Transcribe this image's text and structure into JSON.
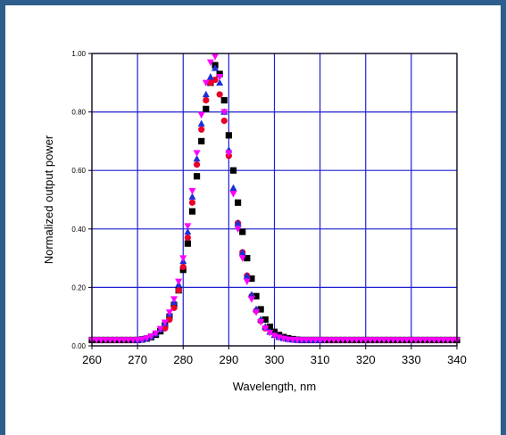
{
  "chart_data": {
    "type": "scatter",
    "title": "",
    "xlabel": "Wavelength, nm",
    "ylabel": "Normalized output power",
    "xlim": [
      260,
      340
    ],
    "ylim": [
      0,
      1
    ],
    "x_ticks": [
      260,
      270,
      280,
      290,
      300,
      310,
      320,
      330,
      340
    ],
    "y_ticks": [
      0,
      0.2,
      0.4,
      0.6,
      0.8,
      1.0
    ],
    "x_tick_labels": [
      "260",
      "270",
      "280",
      "290",
      "300",
      "310",
      "320",
      "330",
      "340"
    ],
    "y_tick_labels": [
      "0.00",
      "0.20",
      "0.40",
      "0.60",
      "0.80",
      "1.00"
    ],
    "grid": true,
    "legend": "none",
    "series": [
      {
        "marker": "square",
        "color": "#000000",
        "x": [
          260,
          261,
          262,
          263,
          264,
          265,
          266,
          267,
          268,
          269,
          270,
          271,
          272,
          273,
          274,
          275,
          276,
          277,
          278,
          279,
          280,
          281,
          282,
          283,
          284,
          285,
          286,
          287,
          288,
          289,
          290,
          291,
          292,
          293,
          294,
          295,
          296,
          297,
          298,
          299,
          300,
          301,
          302,
          303,
          304,
          305,
          306,
          307,
          308,
          309,
          310,
          311,
          312,
          313,
          314,
          315,
          316,
          317,
          318,
          319,
          320,
          321,
          322,
          323,
          324,
          325,
          326,
          327,
          328,
          329,
          330,
          331,
          332,
          333,
          334,
          335,
          336,
          337,
          338,
          339,
          340
        ],
        "y": [
          0.02,
          0.02,
          0.02,
          0.02,
          0.02,
          0.02,
          0.02,
          0.02,
          0.02,
          0.02,
          0.02,
          0.022,
          0.025,
          0.03,
          0.038,
          0.05,
          0.07,
          0.1,
          0.14,
          0.19,
          0.26,
          0.35,
          0.46,
          0.58,
          0.7,
          0.81,
          0.9,
          0.96,
          0.93,
          0.84,
          0.72,
          0.6,
          0.49,
          0.39,
          0.3,
          0.23,
          0.17,
          0.125,
          0.09,
          0.065,
          0.048,
          0.037,
          0.03,
          0.026,
          0.023,
          0.021,
          0.02,
          0.02,
          0.02,
          0.02,
          0.02,
          0.02,
          0.02,
          0.02,
          0.02,
          0.02,
          0.02,
          0.02,
          0.02,
          0.02,
          0.02,
          0.02,
          0.02,
          0.02,
          0.02,
          0.02,
          0.02,
          0.02,
          0.02,
          0.02,
          0.02,
          0.02,
          0.02,
          0.02,
          0.02,
          0.02,
          0.02,
          0.02,
          0.02,
          0.02,
          0.02
        ]
      },
      {
        "marker": "circle",
        "color": "#e8002a",
        "x": [
          276,
          277,
          278,
          279,
          280,
          281,
          282,
          283,
          284,
          285,
          286,
          287,
          288,
          289,
          290,
          291,
          292,
          293,
          294,
          295,
          296,
          297,
          298
        ],
        "y": [
          0.06,
          0.09,
          0.13,
          0.19,
          0.27,
          0.37,
          0.49,
          0.62,
          0.74,
          0.84,
          0.9,
          0.91,
          0.86,
          0.77,
          0.65,
          0.53,
          0.42,
          0.32,
          0.24,
          0.17,
          0.12,
          0.085,
          0.06
        ]
      },
      {
        "marker": "triangle",
        "color": "#1e2fd8",
        "x": [
          270,
          271,
          272,
          273,
          274,
          275,
          276,
          277,
          278,
          279,
          280,
          281,
          282,
          283,
          284,
          285,
          286,
          287,
          288,
          289,
          290,
          291,
          292,
          293,
          294,
          295,
          296,
          297,
          298,
          299,
          300,
          301,
          302,
          303,
          304,
          305,
          306,
          307,
          308,
          309,
          310
        ],
        "y": [
          0.02,
          0.022,
          0.026,
          0.032,
          0.042,
          0.056,
          0.078,
          0.11,
          0.15,
          0.21,
          0.29,
          0.39,
          0.51,
          0.64,
          0.76,
          0.86,
          0.92,
          0.95,
          0.9,
          0.8,
          0.67,
          0.54,
          0.42,
          0.32,
          0.24,
          0.175,
          0.125,
          0.09,
          0.065,
          0.048,
          0.037,
          0.03,
          0.026,
          0.023,
          0.021,
          0.02,
          0.02,
          0.02,
          0.02,
          0.02,
          0.02
        ]
      },
      {
        "marker": "triangle-down",
        "color": "#ff00ff",
        "x": [
          260,
          261,
          262,
          263,
          264,
          265,
          266,
          267,
          268,
          269,
          270,
          271,
          272,
          273,
          274,
          275,
          276,
          277,
          278,
          279,
          280,
          281,
          282,
          283,
          284,
          285,
          286,
          287,
          288,
          289,
          290,
          291,
          292,
          293,
          294,
          295,
          296,
          297,
          298,
          299,
          300,
          301,
          302,
          303,
          304,
          305,
          306,
          307,
          308,
          309,
          310,
          311,
          312,
          313,
          314,
          315,
          316,
          317,
          318,
          319,
          320,
          321,
          322,
          323,
          324,
          325,
          326,
          327,
          328,
          329,
          330,
          331,
          332,
          333,
          334,
          335,
          336,
          337,
          338,
          339,
          340
        ],
        "y": [
          0.02,
          0.02,
          0.02,
          0.02,
          0.02,
          0.02,
          0.02,
          0.02,
          0.02,
          0.02,
          0.02,
          0.022,
          0.026,
          0.033,
          0.043,
          0.058,
          0.08,
          0.115,
          0.16,
          0.22,
          0.3,
          0.41,
          0.53,
          0.66,
          0.79,
          0.9,
          0.97,
          0.99,
          0.92,
          0.8,
          0.66,
          0.52,
          0.4,
          0.3,
          0.22,
          0.16,
          0.115,
          0.082,
          0.06,
          0.045,
          0.035,
          0.029,
          0.025,
          0.022,
          0.021,
          0.02,
          0.02,
          0.02,
          0.02,
          0.02,
          0.02,
          0.02,
          0.02,
          0.02,
          0.02,
          0.02,
          0.02,
          0.02,
          0.02,
          0.02,
          0.02,
          0.02,
          0.02,
          0.02,
          0.02,
          0.02,
          0.02,
          0.02,
          0.02,
          0.02,
          0.02,
          0.02,
          0.02,
          0.02,
          0.02,
          0.02,
          0.02,
          0.02,
          0.02,
          0.02,
          0.02
        ]
      }
    ],
    "colors": {
      "grid": "#1f1fd0",
      "frame": "#2e5e8c"
    }
  }
}
